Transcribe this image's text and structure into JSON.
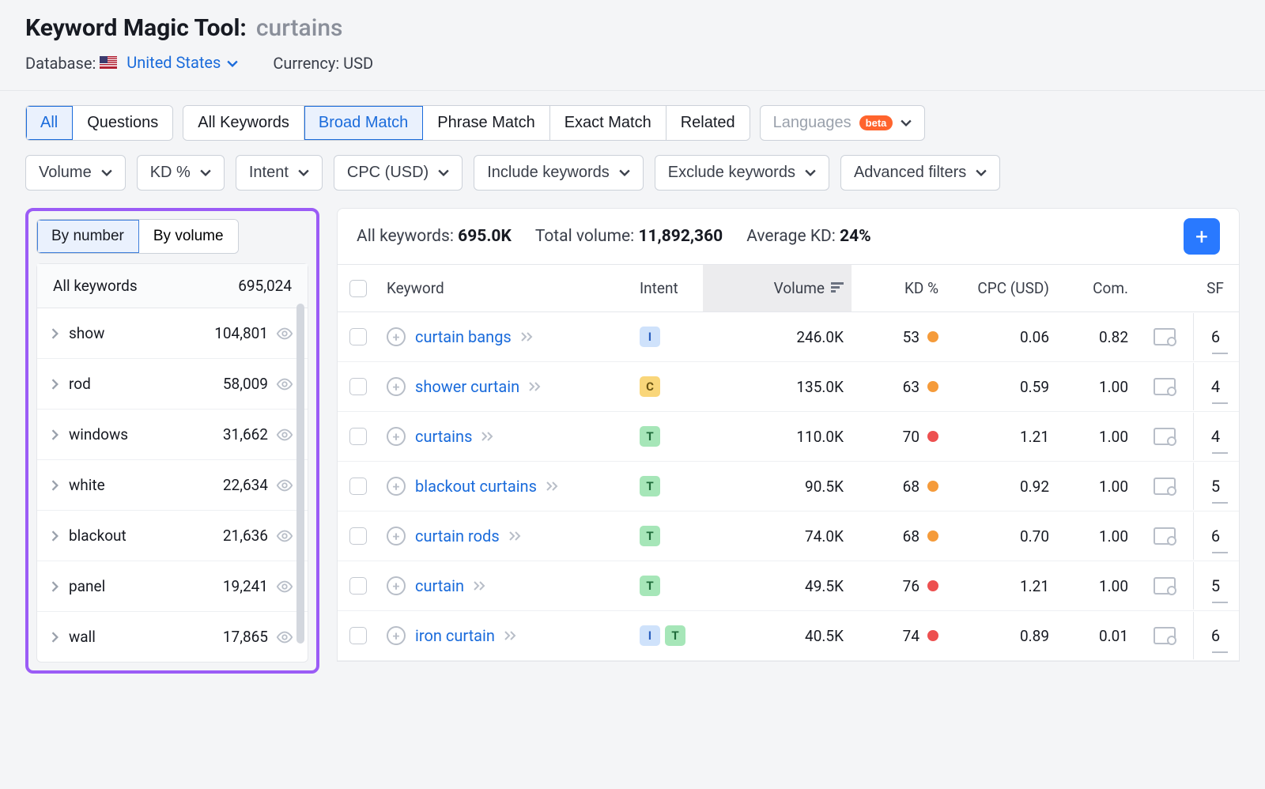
{
  "header": {
    "title": "Keyword Magic Tool:",
    "keyword": "curtains",
    "database_label": "Database:",
    "database_value": "United States",
    "currency_label": "Currency:",
    "currency_value": "USD"
  },
  "toolbar": {
    "seg1": {
      "all": "All",
      "questions": "Questions"
    },
    "seg2": {
      "all_kw": "All Keywords",
      "broad": "Broad Match",
      "phrase": "Phrase Match",
      "exact": "Exact Match",
      "related": "Related"
    },
    "languages": "Languages",
    "beta": "beta",
    "filters": {
      "volume": "Volume",
      "kd": "KD %",
      "intent": "Intent",
      "cpc": "CPC (USD)",
      "include": "Include keywords",
      "exclude": "Exclude keywords",
      "advanced": "Advanced filters"
    }
  },
  "sidebar": {
    "by_number": "By number",
    "by_volume": "By volume",
    "all_keywords_label": "All keywords",
    "all_keywords_count": "695,024",
    "items": [
      {
        "label": "show",
        "count": "104,801"
      },
      {
        "label": "rod",
        "count": "58,009"
      },
      {
        "label": "windows",
        "count": "31,662"
      },
      {
        "label": "white",
        "count": "22,634"
      },
      {
        "label": "blackout",
        "count": "21,636"
      },
      {
        "label": "panel",
        "count": "19,241"
      },
      {
        "label": "wall",
        "count": "17,865"
      }
    ]
  },
  "summary": {
    "all_kw_label": "All keywords:",
    "all_kw_value": "695.0K",
    "total_vol_label": "Total volume:",
    "total_vol_value": "11,892,360",
    "avg_kd_label": "Average KD:",
    "avg_kd_value": "24%"
  },
  "columns": {
    "keyword": "Keyword",
    "intent": "Intent",
    "volume": "Volume",
    "kd": "KD %",
    "cpc": "CPC (USD)",
    "com": "Com.",
    "sf": "SF"
  },
  "colors": {
    "kd_orange": "#f59b3a",
    "kd_red": "#ed5050"
  },
  "rows": [
    {
      "keyword": "curtain bangs",
      "intents": [
        "I"
      ],
      "volume": "246.0K",
      "kd": "53",
      "kd_color": "#f59b3a",
      "cpc": "0.06",
      "com": "0.82",
      "sf": "6"
    },
    {
      "keyword": "shower curtain",
      "intents": [
        "C"
      ],
      "volume": "135.0K",
      "kd": "63",
      "kd_color": "#f59b3a",
      "cpc": "0.59",
      "com": "1.00",
      "sf": "4"
    },
    {
      "keyword": "curtains",
      "intents": [
        "T"
      ],
      "volume": "110.0K",
      "kd": "70",
      "kd_color": "#ed5050",
      "cpc": "1.21",
      "com": "1.00",
      "sf": "4"
    },
    {
      "keyword": "blackout curtains",
      "intents": [
        "T"
      ],
      "volume": "90.5K",
      "kd": "68",
      "kd_color": "#f59b3a",
      "cpc": "0.92",
      "com": "1.00",
      "sf": "5"
    },
    {
      "keyword": "curtain rods",
      "intents": [
        "T"
      ],
      "volume": "74.0K",
      "kd": "68",
      "kd_color": "#f59b3a",
      "cpc": "0.70",
      "com": "1.00",
      "sf": "6"
    },
    {
      "keyword": "curtain",
      "intents": [
        "T"
      ],
      "volume": "49.5K",
      "kd": "76",
      "kd_color": "#ed5050",
      "cpc": "1.21",
      "com": "1.00",
      "sf": "5"
    },
    {
      "keyword": "iron curtain",
      "intents": [
        "I",
        "T"
      ],
      "volume": "40.5K",
      "kd": "74",
      "kd_color": "#ed5050",
      "cpc": "0.89",
      "com": "0.01",
      "sf": "6"
    }
  ]
}
